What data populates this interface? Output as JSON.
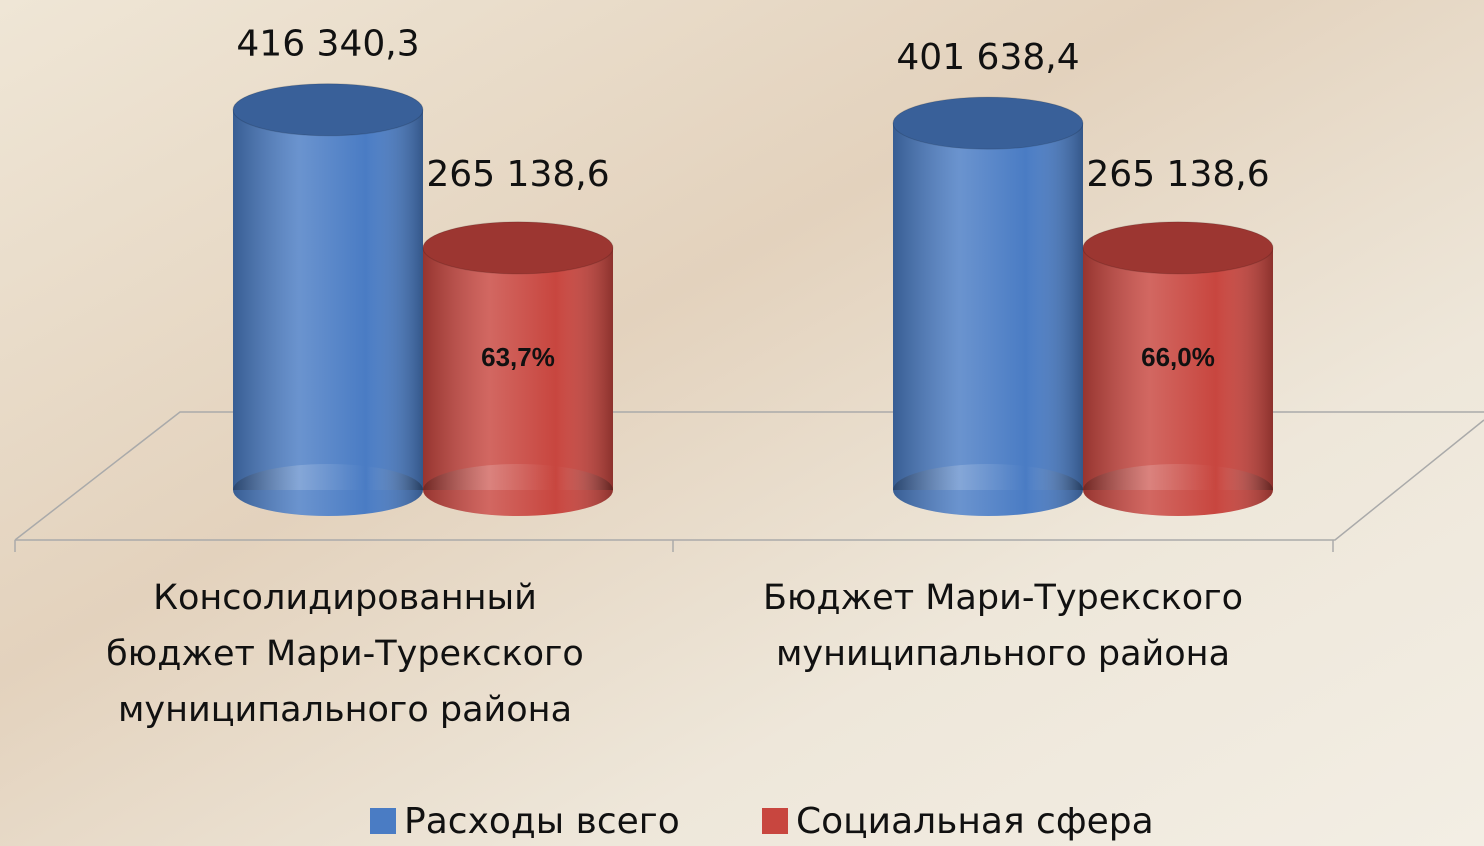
{
  "chart_data": {
    "type": "bar3d",
    "categories": [
      "Консолидированный бюджет Мари-Турекского муниципального района",
      "Бюджет Мари-Турекского муниципального района"
    ],
    "series": [
      {
        "name": "Расходы всего",
        "color": "#4a7cc4",
        "values": [
          416340.3,
          401638.4
        ],
        "value_labels": [
          "416 340,3",
          "401 638,4"
        ]
      },
      {
        "name": "Социальная сфера",
        "color": "#c8463f",
        "values": [
          265138.6,
          265138.6
        ],
        "value_labels": [
          "265 138,6",
          "265 138,6"
        ],
        "inner_labels": [
          "63,7%",
          "66,0%"
        ]
      }
    ],
    "ylim": [
      0,
      450000
    ]
  }
}
